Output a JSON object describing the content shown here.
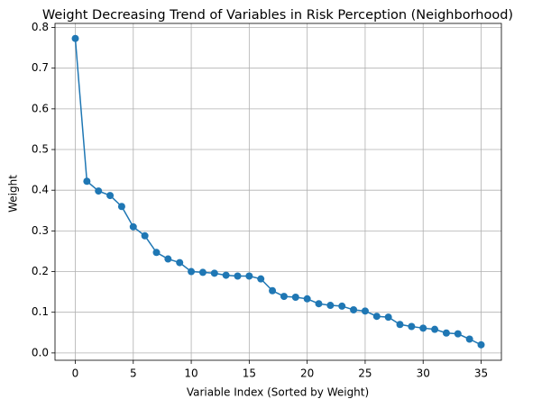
{
  "chart_data": {
    "type": "line",
    "title": "Weight Decreasing Trend of Variables in Risk Perception (Neighborhood)",
    "x_label": "Variable Index (Sorted by Weight)",
    "y_label": "Weight",
    "x": [
      0,
      1,
      2,
      3,
      4,
      5,
      6,
      7,
      8,
      9,
      10,
      11,
      12,
      13,
      14,
      15,
      16,
      17,
      18,
      19,
      20,
      21,
      22,
      23,
      24,
      25,
      26,
      27,
      28,
      29,
      30,
      31,
      32,
      33,
      34,
      35
    ],
    "series": [
      {
        "name": "Weight",
        "color": "#1f77b4",
        "values": [
          0.773,
          0.422,
          0.398,
          0.387,
          0.36,
          0.31,
          0.288,
          0.247,
          0.231,
          0.222,
          0.2,
          0.198,
          0.196,
          0.191,
          0.189,
          0.189,
          0.182,
          0.153,
          0.139,
          0.137,
          0.133,
          0.121,
          0.117,
          0.115,
          0.106,
          0.103,
          0.09,
          0.088,
          0.07,
          0.065,
          0.061,
          0.058,
          0.049,
          0.047,
          0.034,
          0.02
        ]
      }
    ],
    "xlim": [
      -1.75,
      36.75
    ],
    "ylim": [
      -0.018,
      0.81
    ],
    "xticks": [
      0,
      5,
      10,
      15,
      20,
      25,
      30,
      35
    ],
    "yticks": [
      {
        "value": 0,
        "label": "0.0"
      },
      0.1,
      0.2,
      0.3,
      0.4,
      0.5,
      0.6,
      0.7,
      0.8
    ],
    "grid": true
  }
}
